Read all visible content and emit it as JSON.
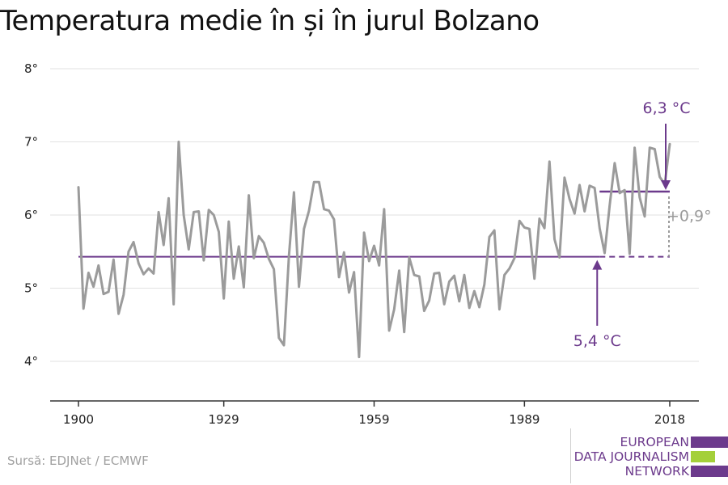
{
  "title": "Temperatura medie în și în jurul Bolzano",
  "source": "Sursă: EDJNet / ECMWF",
  "logo": {
    "lines": [
      "EUROPEAN",
      "DATA JOURNALISM",
      "NETWORK"
    ],
    "colors": [
      "#6c3a8c",
      "#a4d03a",
      "#6c3a8c"
    ]
  },
  "colors": {
    "series": "#9b9b9b",
    "reference": "#6c3a8c",
    "difference": "#9b9b9b",
    "grid": "#e2e2e2",
    "axis": "#333333"
  },
  "chart_data": {
    "type": "line",
    "title": "Temperatura medie în și în jurul Bolzano",
    "xlabel": "",
    "ylabel": "",
    "xlim": [
      1900,
      2018
    ],
    "ylim": [
      3.6,
      8.0
    ],
    "x_ticks": [
      1900,
      1929,
      1959,
      1989,
      2018
    ],
    "y_ticks": [
      4,
      5,
      6,
      7,
      8
    ],
    "y_tick_labels": [
      "4°",
      "5°",
      "6°",
      "7°",
      "8°"
    ],
    "grid": "horizontal",
    "series": [
      {
        "x": [
          1900,
          1901,
          1902,
          1903,
          1904,
          1905,
          1906,
          1907,
          1908,
          1909,
          1910,
          1911,
          1912,
          1913,
          1914,
          1915,
          1916,
          1917,
          1918,
          1919,
          1920,
          1921,
          1922,
          1923,
          1924,
          1925,
          1926,
          1927,
          1928,
          1929,
          1930,
          1931,
          1932,
          1933,
          1934,
          1935,
          1936,
          1937,
          1938,
          1939,
          1940,
          1941,
          1942,
          1943,
          1944,
          1945,
          1946,
          1947,
          1948,
          1949,
          1950,
          1951,
          1952,
          1953,
          1954,
          1955,
          1956,
          1957,
          1958,
          1959,
          1960,
          1961,
          1962,
          1963,
          1964,
          1965,
          1966,
          1967,
          1968,
          1969,
          1970,
          1971,
          1972,
          1973,
          1974,
          1975,
          1976,
          1977,
          1978,
          1979,
          1980,
          1981,
          1982,
          1983,
          1984,
          1985,
          1986,
          1987,
          1988,
          1989,
          1990,
          1991,
          1992,
          1993,
          1994,
          1995,
          1996,
          1997,
          1998,
          1999,
          2000,
          2001,
          2002,
          2003,
          2004,
          2005,
          2006,
          2007,
          2008,
          2009,
          2010,
          2011,
          2012,
          2013,
          2014,
          2015,
          2016,
          2017,
          2018
        ],
        "values": [
          6.38,
          4.72,
          5.21,
          5.02,
          5.31,
          4.92,
          4.95,
          5.39,
          4.65,
          4.91,
          5.5,
          5.63,
          5.34,
          5.19,
          5.27,
          5.2,
          6.04,
          5.59,
          6.23,
          4.78,
          7.0,
          6.0,
          5.53,
          6.04,
          6.05,
          5.38,
          6.07,
          6.0,
          5.77,
          4.86,
          5.91,
          5.13,
          5.57,
          5.01,
          6.27,
          5.41,
          5.71,
          5.62,
          5.4,
          5.26,
          4.32,
          4.22,
          5.44,
          6.31,
          5.02,
          5.81,
          6.06,
          6.45,
          6.45,
          6.08,
          6.06,
          5.94,
          5.15,
          5.49,
          4.94,
          5.22,
          4.06,
          5.76,
          5.37,
          5.58,
          5.31,
          6.08,
          4.42,
          4.71,
          5.24,
          4.4,
          5.42,
          5.18,
          5.16,
          4.69,
          4.83,
          5.2,
          5.21,
          4.78,
          5.09,
          5.17,
          4.82,
          5.18,
          4.73,
          4.96,
          4.74,
          5.05,
          5.7,
          5.79,
          4.71,
          5.18,
          5.27,
          5.41,
          5.92,
          5.83,
          5.81,
          5.13,
          5.95,
          5.82,
          6.73,
          5.67,
          5.42,
          6.51,
          6.22,
          6.02,
          6.41,
          6.05,
          6.4,
          6.37,
          5.82,
          5.48,
          6.13,
          6.71,
          6.3,
          6.34,
          5.47,
          6.92,
          6.24,
          5.98,
          6.92,
          6.9,
          6.52,
          6.42,
          6.97
        ]
      }
    ],
    "reference_line": {
      "value": 5.43,
      "x_from": 1900,
      "x_to": 2018,
      "solid_to": 2004,
      "label": "5,4 °C",
      "label_x": 2004
    },
    "recent_line": {
      "value": 6.32,
      "x_from": 2004,
      "x_to": 2018,
      "label": "6,3 °C"
    },
    "difference": {
      "label": "+0,9°",
      "x": 2018,
      "from": 5.43,
      "to": 6.32
    }
  }
}
